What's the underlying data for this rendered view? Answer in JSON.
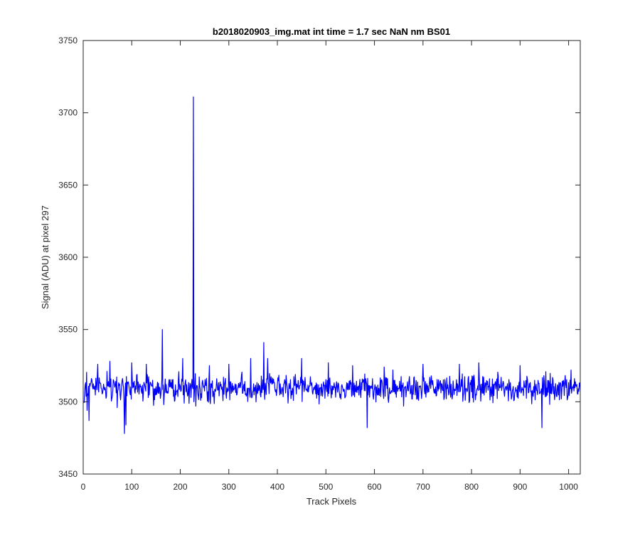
{
  "chart_data": {
    "type": "line",
    "title": "b2018020903_img.mat int time = 1.7 sec  NaN nm BS01",
    "xlabel": "Track Pixels",
    "ylabel": "Signal (ADU) at pixel 297",
    "xlim": [
      0,
      1024
    ],
    "ylim": [
      3450,
      3750
    ],
    "xticks": [
      0,
      100,
      200,
      300,
      400,
      500,
      600,
      700,
      800,
      900,
      1000
    ],
    "yticks": [
      3450,
      3500,
      3550,
      3600,
      3650,
      3700,
      3750
    ],
    "grid": false,
    "line_color": "#0000ff",
    "series": [
      {
        "name": "",
        "noise": {
          "x_start": 1,
          "x_end": 1024,
          "baseline": 3509,
          "amplitude": 10,
          "seed": 297
        },
        "points": [
          [
            3,
            3507
          ],
          [
            8,
            3494
          ],
          [
            12,
            3487
          ],
          [
            20,
            3509
          ],
          [
            30,
            3526
          ],
          [
            49,
            3521
          ],
          [
            55,
            3528
          ],
          [
            70,
            3496
          ],
          [
            85,
            3478
          ],
          [
            88,
            3484
          ],
          [
            100,
            3527
          ],
          [
            130,
            3526
          ],
          [
            160,
            3505
          ],
          [
            163,
            3550
          ],
          [
            166,
            3498
          ],
          [
            205,
            3530
          ],
          [
            222,
            3503
          ],
          [
            227,
            3711
          ],
          [
            228,
            3500
          ],
          [
            232,
            3497
          ],
          [
            260,
            3525
          ],
          [
            300,
            3526
          ],
          [
            345,
            3530
          ],
          [
            372,
            3541
          ],
          [
            380,
            3530
          ],
          [
            450,
            3530
          ],
          [
            505,
            3527
          ],
          [
            555,
            3525
          ],
          [
            585,
            3482
          ],
          [
            620,
            3524
          ],
          [
            700,
            3526
          ],
          [
            775,
            3526
          ],
          [
            815,
            3527
          ],
          [
            900,
            3525
          ],
          [
            945,
            3482
          ],
          [
            1005,
            3522
          ],
          [
            1024,
            3508
          ]
        ]
      }
    ]
  }
}
